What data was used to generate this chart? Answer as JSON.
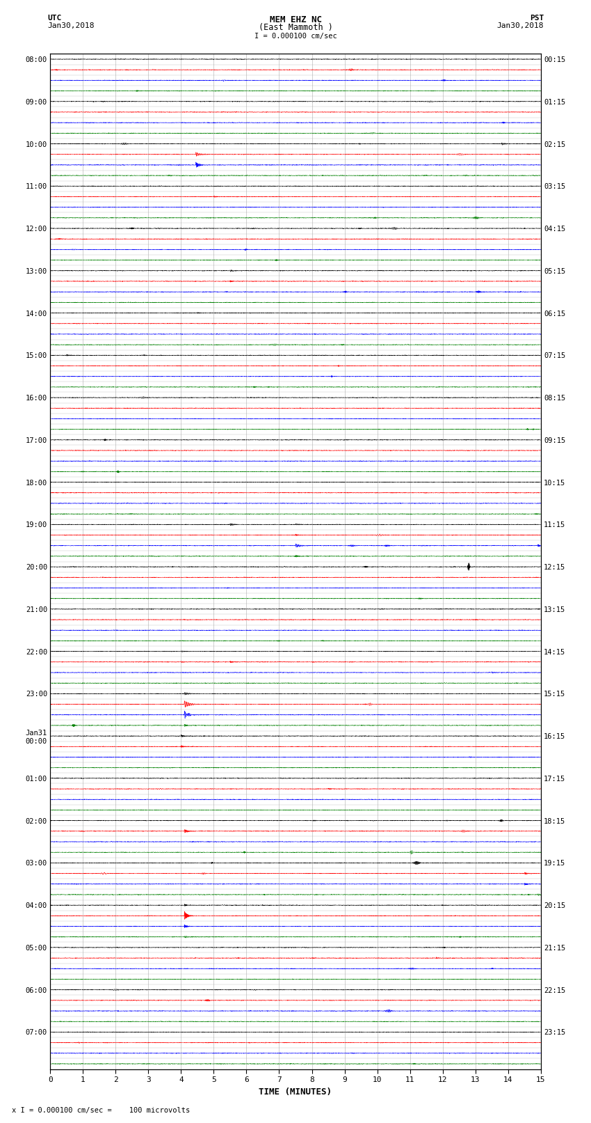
{
  "title_line1": "MEM EHZ NC",
  "title_line2": "(East Mammoth )",
  "title_line3": "I = 0.000100 cm/sec",
  "left_label_top": "UTC",
  "left_label_date": "Jan30,2018",
  "right_label_top": "PST",
  "right_label_date": "Jan30,2018",
  "xlabel": "TIME (MINUTES)",
  "footer": "x I = 0.000100 cm/sec =    100 microvolts",
  "utc_times_major": [
    "08:00",
    "09:00",
    "10:00",
    "11:00",
    "12:00",
    "13:00",
    "14:00",
    "15:00",
    "16:00",
    "17:00",
    "18:00",
    "19:00",
    "20:00",
    "21:00",
    "22:00",
    "23:00",
    "Jan31\n00:00",
    "01:00",
    "02:00",
    "03:00",
    "04:00",
    "05:00",
    "06:00",
    "07:00"
  ],
  "pst_times_major": [
    "00:15",
    "01:15",
    "02:15",
    "03:15",
    "04:15",
    "05:15",
    "06:15",
    "07:15",
    "08:15",
    "09:15",
    "10:15",
    "11:15",
    "12:15",
    "13:15",
    "14:15",
    "15:15",
    "16:15",
    "17:15",
    "18:15",
    "19:15",
    "20:15",
    "21:15",
    "22:15",
    "23:15"
  ],
  "n_rows": 96,
  "colors": [
    "black",
    "red",
    "blue",
    "green"
  ],
  "bg_color": "white",
  "xmin": 0,
  "xmax": 15,
  "xticks": [
    0,
    1,
    2,
    3,
    4,
    5,
    6,
    7,
    8,
    9,
    10,
    11,
    12,
    13,
    14,
    15
  ],
  "figsize": [
    8.5,
    16.13
  ],
  "dpi": 100,
  "grid_color": "#999999",
  "label_fontsize": 7.5,
  "title_fontsize": 9,
  "noise_scale": 0.06,
  "trace_scale": 0.38
}
